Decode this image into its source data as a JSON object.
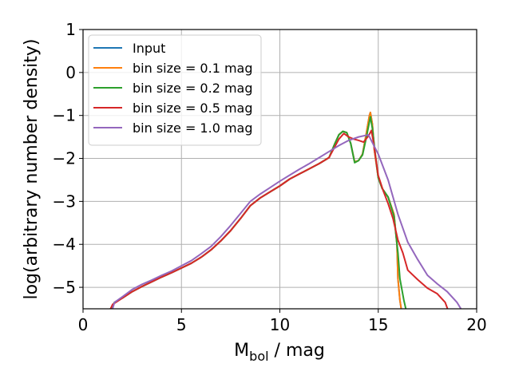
{
  "chart_data": {
    "type": "line",
    "title": "",
    "xlabel": {
      "main": "M",
      "sub": "bol",
      "unit": " / mag"
    },
    "ylabel": "log(arbitrary number density)",
    "xlim": [
      0,
      20
    ],
    "ylim": [
      -5.5,
      1
    ],
    "xticks": [
      0,
      5,
      10,
      15,
      20
    ],
    "yticks": [
      1,
      0,
      -1,
      -2,
      -3,
      -4,
      -5
    ],
    "xtick_labels": [
      "0",
      "5",
      "10",
      "15",
      "20"
    ],
    "ytick_labels": [
      "1",
      "0",
      "−1",
      "−2",
      "−3",
      "−4",
      "−5"
    ],
    "grid": true,
    "legend_position": "top-left",
    "series": [
      {
        "name": "Input",
        "color": "#1f77b4",
        "points": [
          [
            1.4,
            -5.5
          ],
          [
            1.6,
            -5.35
          ],
          [
            2,
            -5.25
          ],
          [
            2.5,
            -5.1
          ],
          [
            3,
            -4.98
          ],
          [
            3.5,
            -4.87
          ],
          [
            4,
            -4.76
          ],
          [
            4.5,
            -4.66
          ],
          [
            5,
            -4.55
          ],
          [
            5.5,
            -4.44
          ],
          [
            6,
            -4.3
          ],
          [
            6.5,
            -4.13
          ],
          [
            7,
            -3.92
          ],
          [
            7.5,
            -3.68
          ],
          [
            8,
            -3.4
          ],
          [
            8.5,
            -3.1
          ],
          [
            9,
            -2.92
          ],
          [
            9.5,
            -2.78
          ],
          [
            10,
            -2.64
          ],
          [
            10.5,
            -2.48
          ],
          [
            11,
            -2.36
          ],
          [
            11.5,
            -2.24
          ],
          [
            12,
            -2.12
          ],
          [
            12.5,
            -1.98
          ],
          [
            12.8,
            -1.65
          ],
          [
            13,
            -1.45
          ],
          [
            13.2,
            -1.37
          ],
          [
            13.4,
            -1.4
          ],
          [
            13.6,
            -1.65
          ],
          [
            13.8,
            -2.08
          ],
          [
            14,
            -2.05
          ],
          [
            14.2,
            -1.9
          ],
          [
            14.4,
            -1.4
          ],
          [
            14.55,
            -1.0
          ],
          [
            14.6,
            -0.93
          ],
          [
            14.7,
            -1.2
          ],
          [
            14.8,
            -1.8
          ],
          [
            15,
            -2.45
          ],
          [
            15.2,
            -2.7
          ],
          [
            15.5,
            -2.9
          ],
          [
            15.8,
            -3.3
          ],
          [
            15.95,
            -4.0
          ],
          [
            16.0,
            -4.8
          ],
          [
            16.1,
            -5.3
          ],
          [
            16.2,
            -5.6
          ]
        ]
      },
      {
        "name": "bin size = 0.1 mag",
        "color": "#ff7f0e",
        "points": [
          [
            1.4,
            -5.5
          ],
          [
            1.6,
            -5.35
          ],
          [
            2,
            -5.25
          ],
          [
            2.5,
            -5.1
          ],
          [
            3,
            -4.98
          ],
          [
            3.5,
            -4.87
          ],
          [
            4,
            -4.76
          ],
          [
            4.5,
            -4.66
          ],
          [
            5,
            -4.55
          ],
          [
            5.5,
            -4.44
          ],
          [
            6,
            -4.3
          ],
          [
            6.5,
            -4.13
          ],
          [
            7,
            -3.92
          ],
          [
            7.5,
            -3.68
          ],
          [
            8,
            -3.4
          ],
          [
            8.5,
            -3.1
          ],
          [
            9,
            -2.92
          ],
          [
            9.5,
            -2.78
          ],
          [
            10,
            -2.64
          ],
          [
            10.5,
            -2.48
          ],
          [
            11,
            -2.36
          ],
          [
            11.5,
            -2.24
          ],
          [
            12,
            -2.12
          ],
          [
            12.5,
            -1.98
          ],
          [
            12.8,
            -1.65
          ],
          [
            13,
            -1.45
          ],
          [
            13.2,
            -1.37
          ],
          [
            13.4,
            -1.4
          ],
          [
            13.6,
            -1.65
          ],
          [
            13.8,
            -2.08
          ],
          [
            14,
            -2.05
          ],
          [
            14.2,
            -1.9
          ],
          [
            14.4,
            -1.4
          ],
          [
            14.55,
            -1.0
          ],
          [
            14.6,
            -0.93
          ],
          [
            14.7,
            -1.2
          ],
          [
            14.8,
            -1.8
          ],
          [
            15,
            -2.45
          ],
          [
            15.2,
            -2.7
          ],
          [
            15.5,
            -2.9
          ],
          [
            15.8,
            -3.3
          ],
          [
            15.95,
            -4.0
          ],
          [
            16.0,
            -4.8
          ],
          [
            16.1,
            -5.3
          ],
          [
            16.2,
            -5.6
          ]
        ]
      },
      {
        "name": "bin size = 0.2 mag",
        "color": "#2ca02c",
        "points": [
          [
            1.4,
            -5.5
          ],
          [
            1.6,
            -5.35
          ],
          [
            2,
            -5.25
          ],
          [
            2.5,
            -5.1
          ],
          [
            3,
            -4.98
          ],
          [
            3.5,
            -4.87
          ],
          [
            4,
            -4.76
          ],
          [
            4.5,
            -4.66
          ],
          [
            5,
            -4.55
          ],
          [
            5.5,
            -4.44
          ],
          [
            6,
            -4.3
          ],
          [
            6.5,
            -4.13
          ],
          [
            7,
            -3.92
          ],
          [
            7.5,
            -3.68
          ],
          [
            8,
            -3.4
          ],
          [
            8.5,
            -3.1
          ],
          [
            9,
            -2.92
          ],
          [
            9.5,
            -2.78
          ],
          [
            10,
            -2.64
          ],
          [
            10.5,
            -2.48
          ],
          [
            11,
            -2.36
          ],
          [
            11.5,
            -2.24
          ],
          [
            12,
            -2.12
          ],
          [
            12.5,
            -1.98
          ],
          [
            12.8,
            -1.65
          ],
          [
            13,
            -1.45
          ],
          [
            13.2,
            -1.37
          ],
          [
            13.4,
            -1.4
          ],
          [
            13.6,
            -1.65
          ],
          [
            13.8,
            -2.1
          ],
          [
            14,
            -2.05
          ],
          [
            14.2,
            -1.92
          ],
          [
            14.4,
            -1.5
          ],
          [
            14.6,
            -1.03
          ],
          [
            14.7,
            -1.3
          ],
          [
            14.85,
            -1.9
          ],
          [
            15,
            -2.45
          ],
          [
            15.2,
            -2.7
          ],
          [
            15.5,
            -2.9
          ],
          [
            15.8,
            -3.35
          ],
          [
            16.0,
            -4.2
          ],
          [
            16.1,
            -4.8
          ],
          [
            16.3,
            -5.3
          ],
          [
            16.45,
            -5.6
          ]
        ]
      },
      {
        "name": "bin size = 0.5 mag",
        "color": "#d62728",
        "points": [
          [
            1.3,
            -5.6
          ],
          [
            1.5,
            -5.4
          ],
          [
            2,
            -5.25
          ],
          [
            2.5,
            -5.1
          ],
          [
            3,
            -4.98
          ],
          [
            3.5,
            -4.87
          ],
          [
            4,
            -4.76
          ],
          [
            4.5,
            -4.66
          ],
          [
            5,
            -4.55
          ],
          [
            5.5,
            -4.44
          ],
          [
            6,
            -4.3
          ],
          [
            6.5,
            -4.13
          ],
          [
            7,
            -3.92
          ],
          [
            7.5,
            -3.68
          ],
          [
            8,
            -3.4
          ],
          [
            8.5,
            -3.1
          ],
          [
            9,
            -2.92
          ],
          [
            9.5,
            -2.78
          ],
          [
            10,
            -2.64
          ],
          [
            10.5,
            -2.48
          ],
          [
            11,
            -2.36
          ],
          [
            11.5,
            -2.24
          ],
          [
            12,
            -2.12
          ],
          [
            12.5,
            -1.98
          ],
          [
            13,
            -1.55
          ],
          [
            13.25,
            -1.42
          ],
          [
            13.5,
            -1.5
          ],
          [
            13.75,
            -1.55
          ],
          [
            14,
            -1.58
          ],
          [
            14.25,
            -1.62
          ],
          [
            14.5,
            -1.48
          ],
          [
            14.65,
            -1.35
          ],
          [
            14.75,
            -1.6
          ],
          [
            15,
            -2.4
          ],
          [
            15.25,
            -2.75
          ],
          [
            15.5,
            -3.05
          ],
          [
            15.75,
            -3.4
          ],
          [
            16,
            -3.9
          ],
          [
            16.25,
            -4.2
          ],
          [
            16.5,
            -4.6
          ],
          [
            17,
            -4.82
          ],
          [
            17.5,
            -5.02
          ],
          [
            18,
            -5.15
          ],
          [
            18.4,
            -5.35
          ],
          [
            18.6,
            -5.6
          ]
        ]
      },
      {
        "name": "bin size = 1.0 mag",
        "color": "#9467bd",
        "points": [
          [
            1.5,
            -5.5
          ],
          [
            1.6,
            -5.35
          ],
          [
            2,
            -5.22
          ],
          [
            2.5,
            -5.05
          ],
          [
            3,
            -4.93
          ],
          [
            3.5,
            -4.83
          ],
          [
            4,
            -4.72
          ],
          [
            4.5,
            -4.62
          ],
          [
            5,
            -4.5
          ],
          [
            5.5,
            -4.38
          ],
          [
            6,
            -4.22
          ],
          [
            6.5,
            -4.05
          ],
          [
            7,
            -3.82
          ],
          [
            7.5,
            -3.56
          ],
          [
            8,
            -3.28
          ],
          [
            8.5,
            -3.0
          ],
          [
            9,
            -2.83
          ],
          [
            9.5,
            -2.68
          ],
          [
            10,
            -2.53
          ],
          [
            10.5,
            -2.39
          ],
          [
            11,
            -2.25
          ],
          [
            11.5,
            -2.12
          ],
          [
            12,
            -1.98
          ],
          [
            12.5,
            -1.84
          ],
          [
            13,
            -1.7
          ],
          [
            13.5,
            -1.58
          ],
          [
            14,
            -1.5
          ],
          [
            14.5,
            -1.45
          ],
          [
            15,
            -1.9
          ],
          [
            15.5,
            -2.5
          ],
          [
            16,
            -3.3
          ],
          [
            16.5,
            -3.95
          ],
          [
            17,
            -4.35
          ],
          [
            17.5,
            -4.72
          ],
          [
            18,
            -4.92
          ],
          [
            18.5,
            -5.1
          ],
          [
            19,
            -5.35
          ],
          [
            19.2,
            -5.5
          ]
        ]
      }
    ]
  }
}
